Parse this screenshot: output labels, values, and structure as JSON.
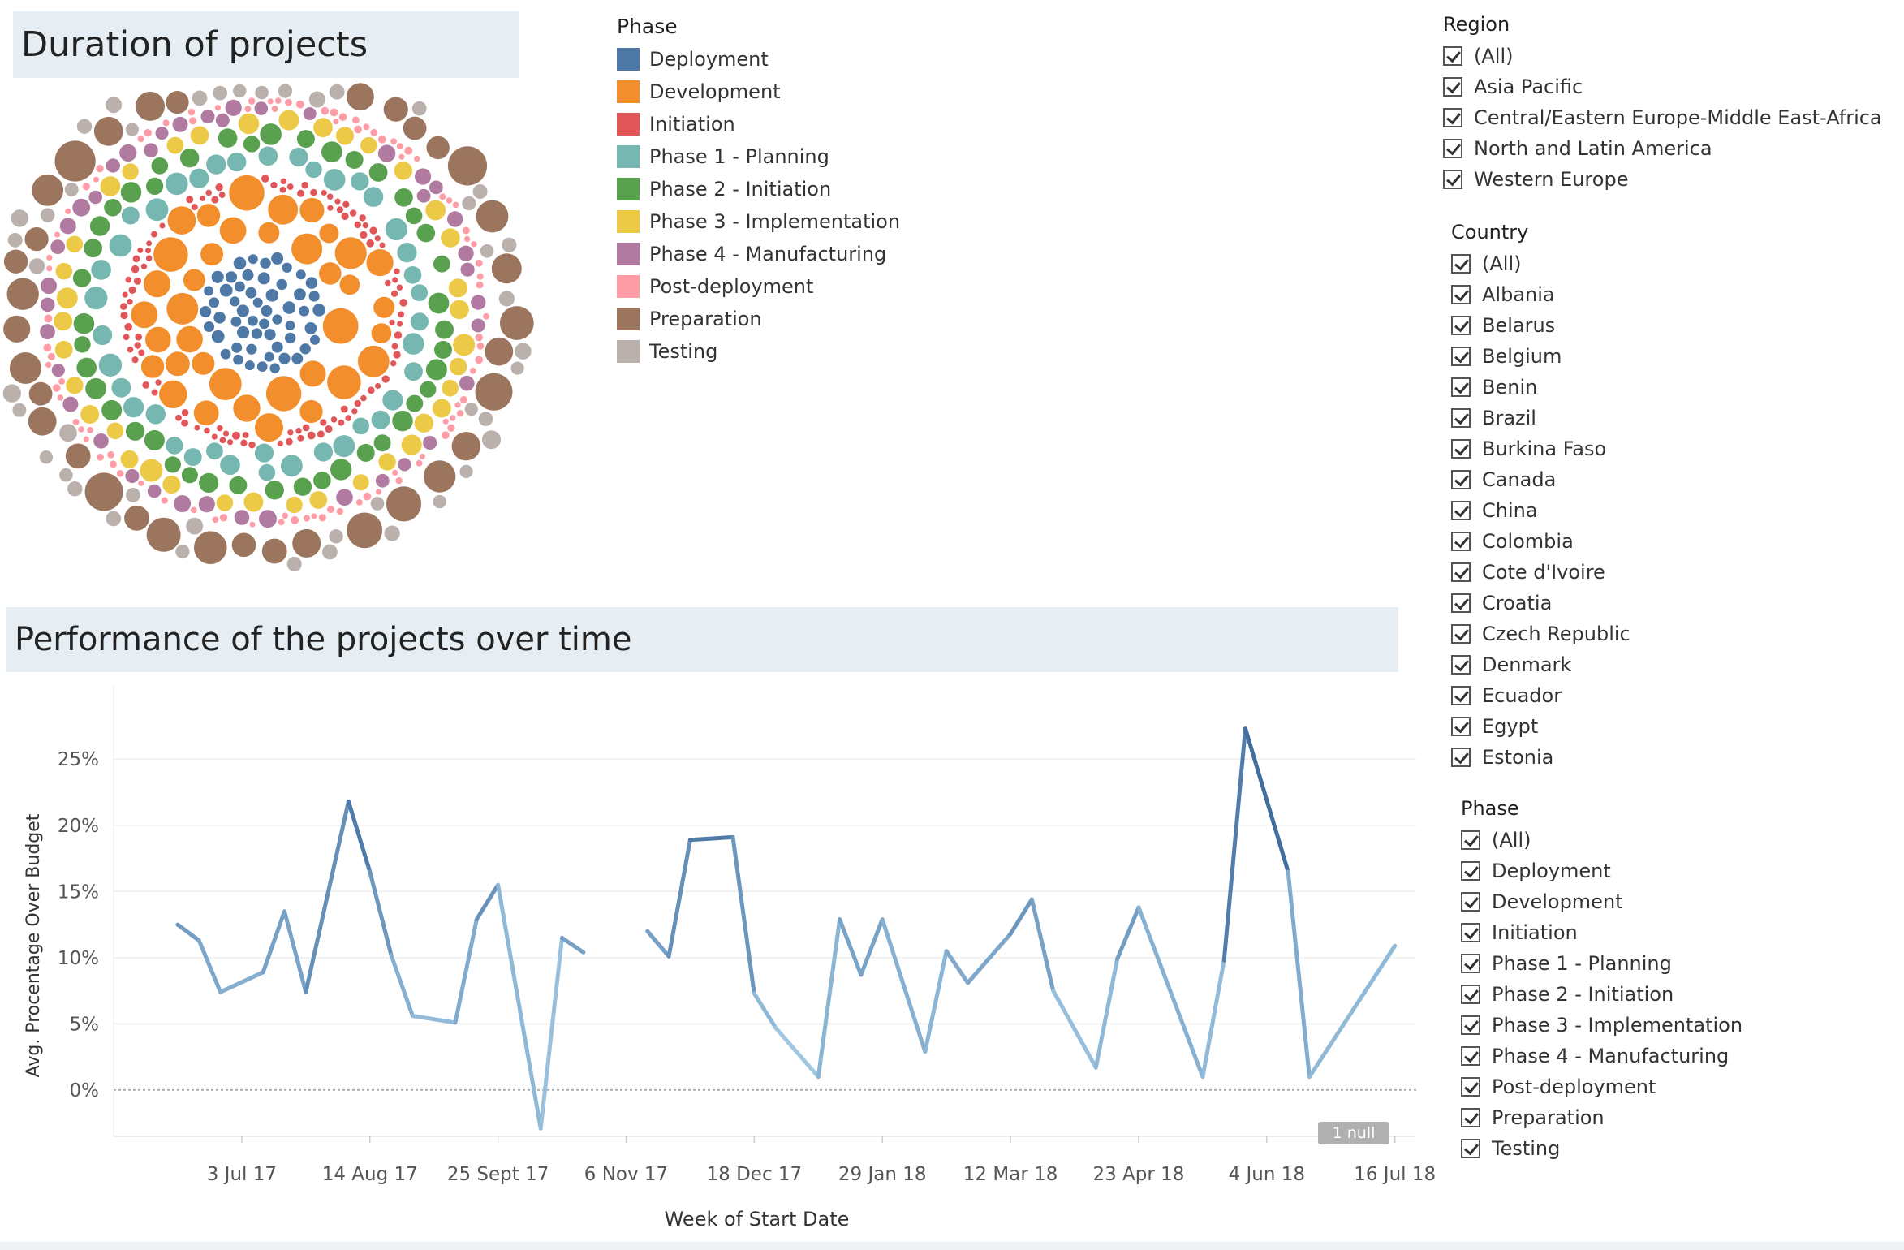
{
  "dashboard": {
    "title_duration": "Duration of projects",
    "title_performance": "Performance of the projects over time"
  },
  "legend": {
    "title": "Phase",
    "items": [
      {
        "label": "Deployment",
        "color": "#4e79a7"
      },
      {
        "label": "Development",
        "color": "#f28e2b"
      },
      {
        "label": "Initiation",
        "color": "#e15759"
      },
      {
        "label": "Phase 1 - Planning",
        "color": "#76b7b2"
      },
      {
        "label": "Phase 2 - Initiation",
        "color": "#59a14f"
      },
      {
        "label": "Phase 3 - Implementation",
        "color": "#edc948"
      },
      {
        "label": "Phase 4 - Manufacturing",
        "color": "#b07aa1"
      },
      {
        "label": "Post-deployment",
        "color": "#ff9da7"
      },
      {
        "label": "Preparation",
        "color": "#9c755f"
      },
      {
        "label": "Testing",
        "color": "#bab0ac"
      }
    ]
  },
  "filters": {
    "region": {
      "title": "Region",
      "items": [
        "(All)",
        "Asia Pacific",
        "Central/Eastern Europe-Middle East-Africa",
        "North and Latin America",
        "Western Europe"
      ]
    },
    "country": {
      "title": "Country",
      "items": [
        "(All)",
        "Albania",
        "Belarus",
        "Belgium",
        "Benin",
        "Brazil",
        "Burkina Faso",
        "Canada",
        "China",
        "Colombia",
        "Cote d'Ivoire",
        "Croatia",
        "Czech Republic",
        "Denmark",
        "Ecuador",
        "Egypt",
        "Estonia"
      ]
    },
    "phase": {
      "title": "Phase",
      "items": [
        "(All)",
        "Deployment",
        "Development",
        "Initiation",
        "Phase 1 - Planning",
        "Phase 2 - Initiation",
        "Phase 3 - Implementation",
        "Phase 4 - Manufacturing",
        "Post-deployment",
        "Preparation",
        "Testing"
      ]
    }
  },
  "null_indicator": "1 null",
  "chart_data": [
    {
      "type": "bubble",
      "title": "Duration of projects",
      "color_by": "Phase",
      "rings": [
        {
          "phase": "Deployment",
          "color": "#4e79a7"
        },
        {
          "phase": "Development",
          "color": "#f28e2b"
        },
        {
          "phase": "Initiation",
          "color": "#e15759"
        },
        {
          "phase": "Phase 1 - Planning",
          "color": "#76b7b2"
        },
        {
          "phase": "Phase 2 - Initiation",
          "color": "#59a14f"
        },
        {
          "phase": "Phase 3 - Implementation",
          "color": "#edc948"
        },
        {
          "phase": "Phase 4 - Manufacturing",
          "color": "#b07aa1"
        },
        {
          "phase": "Post-deployment",
          "color": "#ff9da7"
        },
        {
          "phase": "Preparation",
          "color": "#9c755f"
        },
        {
          "phase": "Testing",
          "color": "#bab0ac"
        }
      ]
    },
    {
      "type": "line",
      "title": "Performance of the projects over time",
      "xlabel": "Week of Start Date",
      "ylabel": "Avg. Procentage Over Budget",
      "x_tick_labels": [
        "3 Jul 17",
        "14 Aug 17",
        "25 Sept 17",
        "6 Nov 17",
        "18 Dec 17",
        "29 Jan 18",
        "12 Mar 18",
        "23 Apr 18",
        "4 Jun 18",
        "16 Jul 18"
      ],
      "x_ticks": [
        "2017-07-03",
        "2017-08-14",
        "2017-09-25",
        "2017-11-06",
        "2017-12-18",
        "2018-01-29",
        "2018-03-12",
        "2018-04-23",
        "2018-06-04",
        "2018-07-16"
      ],
      "y_ticks": [
        "0%",
        "5%",
        "10%",
        "15%",
        "20%",
        "25%"
      ],
      "ylim": [
        -3.5,
        29
      ],
      "xlim": [
        "2017-05-22",
        "2018-07-23"
      ],
      "segments": [
        [
          {
            "x": "2017-06-12",
            "y": 12.5
          },
          {
            "x": "2017-06-19",
            "y": 11.3
          },
          {
            "x": "2017-06-26",
            "y": 7.4
          },
          {
            "x": "2017-07-10",
            "y": 8.9
          },
          {
            "x": "2017-07-17",
            "y": 13.5
          },
          {
            "x": "2017-07-24",
            "y": 7.4
          },
          {
            "x": "2017-08-07",
            "y": 21.8
          },
          {
            "x": "2017-08-14",
            "y": 16.5
          },
          {
            "x": "2017-08-21",
            "y": 10.2
          },
          {
            "x": "2017-08-28",
            "y": 5.6
          },
          {
            "x": "2017-09-11",
            "y": 5.1
          },
          {
            "x": "2017-09-18",
            "y": 12.9
          },
          {
            "x": "2017-09-25",
            "y": 15.5
          },
          {
            "x": "2017-10-09",
            "y": -2.9
          },
          {
            "x": "2017-10-16",
            "y": 11.5
          },
          {
            "x": "2017-10-23",
            "y": 10.4
          }
        ],
        [
          {
            "x": "2017-11-13",
            "y": 12.0
          },
          {
            "x": "2017-11-20",
            "y": 10.1
          },
          {
            "x": "2017-11-27",
            "y": 18.9
          },
          {
            "x": "2017-12-11",
            "y": 19.1
          },
          {
            "x": "2017-12-18",
            "y": 7.3
          },
          {
            "x": "2017-12-25",
            "y": 4.7
          },
          {
            "x": "2018-01-08",
            "y": 1.0
          },
          {
            "x": "2018-01-15",
            "y": 12.9
          },
          {
            "x": "2018-01-22",
            "y": 8.7
          },
          {
            "x": "2018-01-29",
            "y": 12.9
          },
          {
            "x": "2018-02-12",
            "y": 2.9
          },
          {
            "x": "2018-02-19",
            "y": 10.5
          },
          {
            "x": "2018-02-26",
            "y": 8.1
          },
          {
            "x": "2018-03-12",
            "y": 11.8
          },
          {
            "x": "2018-03-19",
            "y": 14.4
          },
          {
            "x": "2018-03-26",
            "y": 7.5
          },
          {
            "x": "2018-04-09",
            "y": 1.7
          },
          {
            "x": "2018-04-16",
            "y": 9.9
          },
          {
            "x": "2018-04-23",
            "y": 13.8
          },
          {
            "x": "2018-05-14",
            "y": 1.0
          },
          {
            "x": "2018-05-21",
            "y": 9.8
          },
          {
            "x": "2018-05-28",
            "y": 27.3
          },
          {
            "x": "2018-06-11",
            "y": 16.5
          },
          {
            "x": "2018-06-18",
            "y": 1.0
          },
          {
            "x": "2018-07-16",
            "y": 10.9
          }
        ]
      ],
      "grid": true,
      "zero_line": "dotted"
    }
  ]
}
